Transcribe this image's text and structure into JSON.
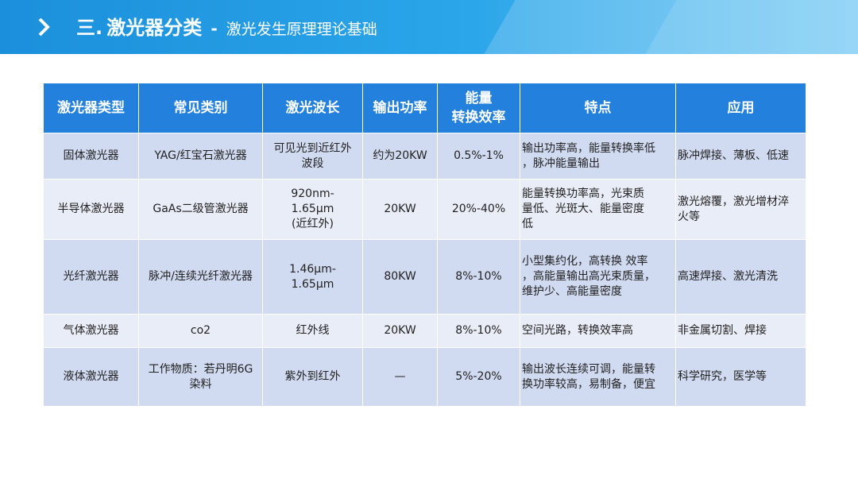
{
  "header": {
    "number": "三.",
    "title": "激光器分类",
    "separator": "-",
    "subtitle": "激光发生原理理论基础"
  },
  "table": {
    "columns": [
      "激光器类型",
      "常见类别",
      "激光波长",
      "输出功率",
      "能量\n转换效率",
      "特点",
      "应用"
    ],
    "rows": [
      {
        "type": "固体激光器",
        "category": "YAG/红宝石激光器",
        "wavelength": "可见光到近红外\n波段",
        "power": "约为20KW",
        "efficiency": "0.5%-1%",
        "features": "输出功率高，能量转换率低\n，脉冲能量输出",
        "application": "脉冲焊接、薄板、低速"
      },
      {
        "type": "半导体激光器",
        "category": "GaAs二级管激光器",
        "wavelength": "920nm-\n1.65μm\n(近红外)",
        "power": "20KW",
        "efficiency": "20%-40%",
        "features": "能量转换功率高，光束质\n量低、光斑大、能量密度\n低",
        "application": "激光熔覆，激光增材淬\n火等"
      },
      {
        "type": "光纤激光器",
        "category": "脉冲/连续光纤激光器",
        "wavelength": "1.46μm-\n1.65μm",
        "power": "80KW",
        "efficiency": "8%-10%",
        "features": "小型集约化，高转换 效率\n，高能量输出高光束质量，\n维护少、高能量密度",
        "application": "高速焊接、激光清洗"
      },
      {
        "type": "气体激光器",
        "category": "co2",
        "wavelength": "红外线",
        "power": "20KW",
        "efficiency": "8%-10%",
        "features": "空间光路，转换效率高",
        "application": "非金属切割、焊接"
      },
      {
        "type": "液体激光器",
        "category": "工作物质：若丹明6G\n染料",
        "wavelength": "紫外到红外",
        "power": "—",
        "efficiency": "5%-20%",
        "features": "输出波长连续可调，能量转\n换功率较高，易制备，便宜",
        "application": "科学研究，医学等"
      }
    ]
  },
  "colors": {
    "header_start": "#1b8fdb",
    "header_end": "#6fc7f3",
    "table_header": "#2380dc",
    "row_odd": "#d0daf0",
    "row_even": "#e9edf7"
  },
  "icons": {
    "header_arrow": "chevron-right-icon"
  }
}
